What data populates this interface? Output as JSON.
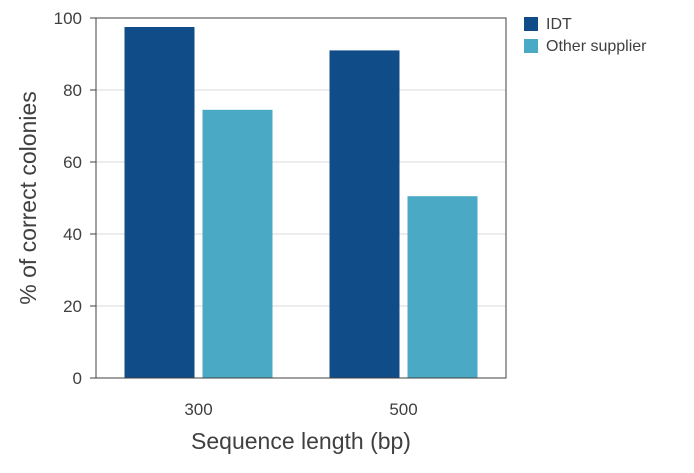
{
  "chart_data": {
    "type": "bar",
    "title": "",
    "xlabel": "Sequence length (bp)",
    "ylabel": "% of correct colonies",
    "categories": [
      "300",
      "500"
    ],
    "series": [
      {
        "name": "IDT",
        "values": [
          97.5,
          91
        ],
        "color": "#0f4c88"
      },
      {
        "name": "Other supplier",
        "values": [
          74.5,
          50.5
        ],
        "color": "#4aa9c5"
      }
    ],
    "ylim": [
      0,
      100
    ],
    "yticks": [
      0,
      20,
      40,
      60,
      80,
      100
    ],
    "grid": true,
    "legend": "top-right"
  }
}
